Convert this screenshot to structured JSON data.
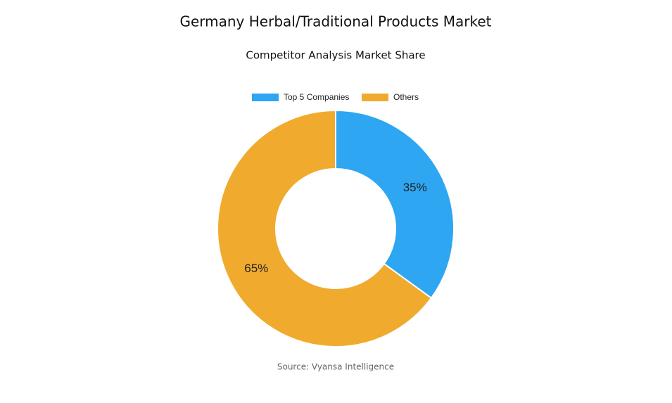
{
  "chart_data": {
    "type": "donut",
    "title": "Germany Herbal/Traditional Products Market",
    "subtitle": "Competitor Analysis Market Share",
    "categories": [
      "Top 5 Companies",
      "Others"
    ],
    "values": [
      35,
      65
    ],
    "value_labels": [
      "35%",
      "65%"
    ],
    "colors": [
      "#2ea6f2",
      "#f0ab2e"
    ],
    "legend": "top",
    "source": "Source: Vyansa Intelligence"
  }
}
